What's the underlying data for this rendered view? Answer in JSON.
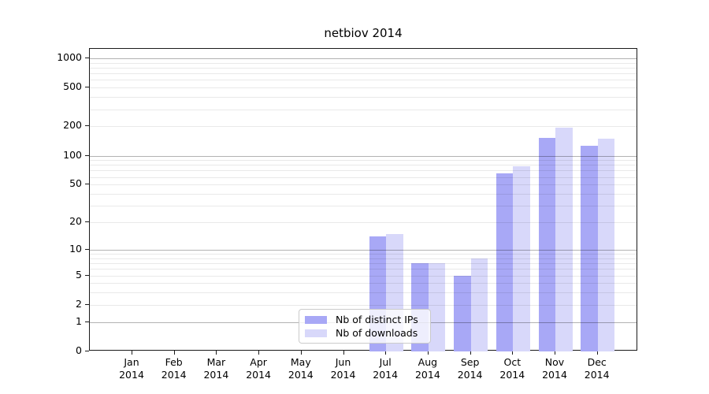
{
  "chart_data": {
    "type": "bar",
    "title": "netbiov 2014",
    "xlabel": "",
    "ylabel": "",
    "year_label": "2014",
    "categories": [
      "Jan",
      "Feb",
      "Mar",
      "Apr",
      "May",
      "Jun",
      "Jul",
      "Aug",
      "Sep",
      "Oct",
      "Nov",
      "Dec"
    ],
    "series": [
      {
        "name": "Nb of distinct IPs",
        "color": "#a8a8f6",
        "values": [
          0,
          0,
          0,
          0,
          0,
          0,
          14,
          7,
          5,
          65,
          152,
          126
        ]
      },
      {
        "name": "Nb of downloads",
        "color": "#d8d8fa",
        "values": [
          0,
          0,
          0,
          0,
          0,
          0,
          15,
          7,
          8,
          78,
          193,
          150
        ]
      }
    ],
    "yscale": "log1p",
    "yticks": [
      0,
      1,
      2,
      5,
      10,
      20,
      50,
      100,
      200,
      500,
      1000
    ],
    "ylim": [
      0,
      1250
    ],
    "grid": true,
    "grid_major_values": [
      1,
      10,
      100,
      1000
    ],
    "grid_minor_values": [
      2,
      3,
      4,
      5,
      6,
      7,
      8,
      9,
      20,
      30,
      40,
      50,
      60,
      70,
      80,
      90,
      200,
      300,
      400,
      500,
      600,
      700,
      800,
      900
    ],
    "legend_position": "lower center",
    "colors": {
      "axis": "#1a1a1a",
      "grid_major": "rgba(0,0,0,0.30)",
      "grid_minor": "rgba(0,0,0,0.085)",
      "background": "#ffffff"
    }
  }
}
